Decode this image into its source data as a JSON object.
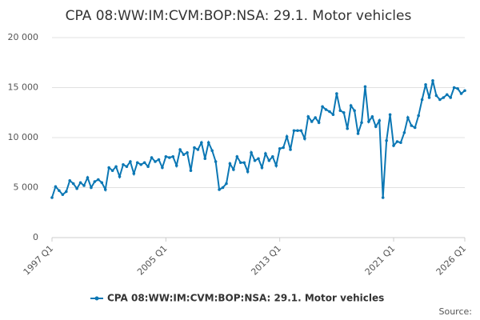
{
  "chart_data": {
    "type": "line",
    "title": "CPA 08:WW:IM:CVM:BOP:NSA: 29.1. Motor vehicles",
    "source": "Source:",
    "categories": [
      "1997 Q1",
      null,
      null,
      null,
      null,
      null,
      null,
      null,
      null,
      null,
      null,
      null,
      null,
      null,
      null,
      null,
      null,
      null,
      null,
      null,
      null,
      null,
      null,
      null,
      null,
      null,
      null,
      null,
      null,
      null,
      null,
      null,
      "2005 Q1",
      null,
      null,
      null,
      null,
      null,
      null,
      null,
      null,
      null,
      null,
      null,
      null,
      null,
      null,
      null,
      null,
      null,
      null,
      null,
      null,
      null,
      null,
      null,
      null,
      null,
      null,
      null,
      null,
      null,
      null,
      null,
      "2013 Q1",
      null,
      null,
      null,
      null,
      null,
      null,
      null,
      null,
      null,
      null,
      null,
      null,
      null,
      null,
      null,
      null,
      null,
      null,
      null,
      null,
      null,
      null,
      null,
      null,
      null,
      null,
      null,
      null,
      null,
      null,
      null,
      "2021 Q1",
      null,
      null,
      null,
      null,
      null,
      null,
      null,
      null,
      null,
      null,
      null,
      null,
      null,
      null,
      null,
      null,
      null,
      null,
      null,
      "2026 Q1"
    ],
    "series": [
      {
        "name": "CPA 08:WW:IM:CVM:BOP:NSA: 29.1. Motor vehicles",
        "color": "#0b77b4",
        "values": [
          4000,
          5100,
          4700,
          4300,
          4600,
          5700,
          5400,
          4900,
          5500,
          5200,
          6000,
          5000,
          5600,
          5800,
          5500,
          4800,
          7000,
          6700,
          7100,
          6100,
          7300,
          7100,
          7600,
          6400,
          7500,
          7300,
          7500,
          7100,
          8000,
          7600,
          7800,
          7000,
          8100,
          8000,
          8100,
          7200,
          8800,
          8300,
          8500,
          6700,
          9000,
          8800,
          9500,
          7900,
          9500,
          8700,
          7600,
          4800,
          5000,
          5400,
          7400,
          6800,
          8100,
          7500,
          7500,
          6600,
          8500,
          7700,
          7900,
          7000,
          8400,
          7700,
          8100,
          7200,
          8900,
          9000,
          10100,
          8800,
          10700,
          10700,
          10700,
          9900,
          12100,
          11600,
          12000,
          11500,
          13100,
          12800,
          12600,
          12300,
          14400,
          12700,
          12500,
          10900,
          13200,
          12700,
          10400,
          11500,
          15100,
          11600,
          12100,
          11100,
          11700,
          4000,
          9700,
          12300,
          9200,
          9600,
          9500,
          10500,
          12000,
          11200,
          11000,
          12200,
          13800,
          15300,
          14000,
          15700,
          14200,
          13800,
          14000,
          14300,
          14000,
          15000,
          14900,
          14400,
          14700
        ]
      }
    ],
    "ylim": [
      0,
      20000
    ],
    "yticks": [
      0,
      {
        "value": 5000,
        "label": "5 000"
      },
      {
        "value": 10000,
        "label": "10 000"
      },
      {
        "value": 15000,
        "label": "15 000"
      },
      {
        "value": 20000,
        "label": "20 000"
      }
    ],
    "grid": true,
    "legend": "bottom"
  }
}
